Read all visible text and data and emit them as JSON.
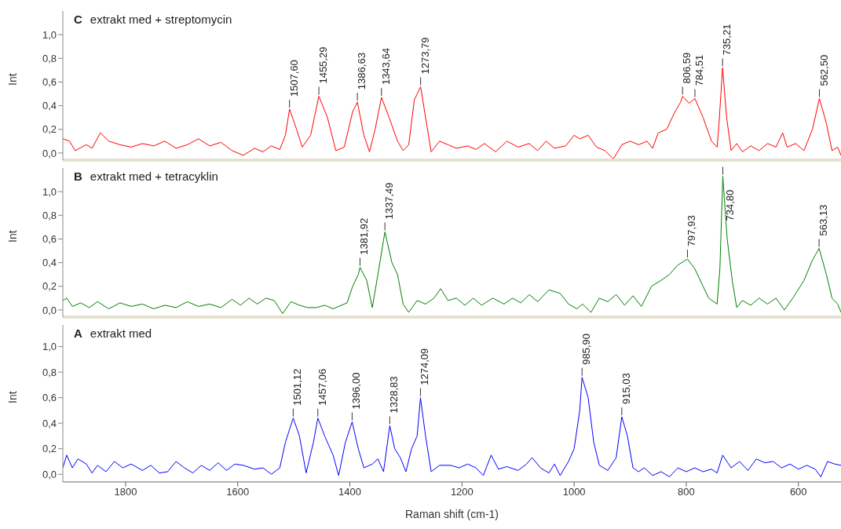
{
  "chart_data": [
    {
      "type": "line",
      "title": "C extrakt med + streptomycin",
      "ylabel": "Int",
      "xlim": [
        1912,
        524
      ],
      "ylim": [
        -0.06,
        1.2
      ],
      "tick_labels": "y",
      "xticks": [
        1800,
        1600,
        1400,
        1200,
        1000,
        800,
        600
      ],
      "yticks": [
        {
          "value": 0,
          "label": "0,0"
        },
        {
          "value": 0.2,
          "label": "0,2"
        },
        {
          "value": 0.4,
          "label": "0,4"
        },
        {
          "value": 0.6,
          "label": "0,6"
        },
        {
          "value": 0.8,
          "label": "0,8"
        },
        {
          "value": 1,
          "label": "1,0"
        }
      ],
      "series": [
        {
          "color": "#ff0000",
          "x": [
            1912,
            1900,
            1890,
            1870,
            1860,
            1845,
            1830,
            1810,
            1790,
            1770,
            1750,
            1730,
            1710,
            1690,
            1670,
            1650,
            1630,
            1610,
            1590,
            1570,
            1555,
            1540,
            1525,
            1515,
            1507.6,
            1495,
            1485,
            1470,
            1455.3,
            1440,
            1425,
            1410,
            1395,
            1386.6,
            1375,
            1365,
            1355,
            1343.6,
            1330,
            1315,
            1305,
            1295,
            1285,
            1273.8,
            1265,
            1255,
            1240,
            1225,
            1210,
            1190,
            1175,
            1160,
            1140,
            1120,
            1100,
            1080,
            1065,
            1050,
            1035,
            1015,
            1000,
            990,
            975,
            960,
            945,
            930,
            915,
            900,
            885,
            870,
            860,
            850,
            835,
            820,
            810,
            806.6,
            795,
            784.5,
            770,
            755,
            745,
            742,
            735.2,
            728,
            720,
            710,
            700,
            685,
            670,
            655,
            640,
            628,
            620,
            605,
            590,
            575,
            562.5,
            550,
            540,
            530,
            524
          ],
          "values": [
            0.12,
            0.1,
            0.02,
            0.07,
            0.04,
            0.17,
            0.1,
            0.07,
            0.05,
            0.08,
            0.06,
            0.1,
            0.04,
            0.07,
            0.12,
            0.06,
            0.09,
            0.02,
            -0.02,
            0.04,
            0.01,
            0.06,
            0.03,
            0.15,
            0.37,
            0.2,
            0.05,
            0.15,
            0.48,
            0.3,
            0.02,
            0.05,
            0.35,
            0.43,
            0.15,
            0.01,
            0.2,
            0.47,
            0.3,
            0.1,
            0.02,
            0.07,
            0.45,
            0.56,
            0.3,
            0.01,
            0.1,
            0.07,
            0.04,
            0.06,
            0.03,
            0.08,
            0.01,
            0.1,
            0.05,
            0.08,
            0.02,
            0.1,
            0.04,
            0.06,
            0.15,
            0.12,
            0.15,
            0.05,
            0.02,
            -0.05,
            0.07,
            0.1,
            0.07,
            0.1,
            0.04,
            0.17,
            0.2,
            0.35,
            0.43,
            0.48,
            0.42,
            0.46,
            0.3,
            0.1,
            0.05,
            0.22,
            0.72,
            0.3,
            0.02,
            0.08,
            0.01,
            0.06,
            0.02,
            0.08,
            0.05,
            0.17,
            0.05,
            0.08,
            0.02,
            0.2,
            0.46,
            0.25,
            0.02,
            0.05,
            -0.02
          ]
        }
      ],
      "annotations": [
        {
          "text": "1507,60",
          "x": 1507.6,
          "y": 0.37
        },
        {
          "text": "1455,29",
          "x": 1455.3,
          "y": 0.48
        },
        {
          "text": "1386,63",
          "x": 1386.6,
          "y": 0.43
        },
        {
          "text": "1343,64",
          "x": 1343.6,
          "y": 0.47
        },
        {
          "text": "1273,79",
          "x": 1273.8,
          "y": 0.56
        },
        {
          "text": "806,59",
          "x": 806.6,
          "y": 0.48
        },
        {
          "text": "784,51",
          "x": 784.5,
          "y": 0.46
        },
        {
          "text": "735,21",
          "x": 735.2,
          "y": 0.72
        },
        {
          "text": "562,50",
          "x": 562.5,
          "y": 0.46
        }
      ]
    },
    {
      "type": "line",
      "title": "B extrakt med + tetracyklin",
      "ylabel": "Int",
      "xlim": [
        1912,
        524
      ],
      "ylim": [
        -0.06,
        1.2
      ],
      "tick_labels": "y",
      "xticks": [
        1800,
        1600,
        1400,
        1200,
        1000,
        800,
        600
      ],
      "yticks": [
        {
          "value": 0,
          "label": "0,0"
        },
        {
          "value": 0.2,
          "label": "0,2"
        },
        {
          "value": 0.4,
          "label": "0,4"
        },
        {
          "value": 0.6,
          "label": "0,6"
        },
        {
          "value": 0.8,
          "label": "0,8"
        },
        {
          "value": 1,
          "label": "1,0"
        }
      ],
      "series": [
        {
          "color": "#008000",
          "x": [
            1912,
            1905,
            1895,
            1880,
            1865,
            1850,
            1830,
            1810,
            1790,
            1770,
            1750,
            1730,
            1710,
            1690,
            1670,
            1650,
            1630,
            1610,
            1595,
            1580,
            1565,
            1550,
            1535,
            1520,
            1505,
            1490,
            1475,
            1460,
            1445,
            1430,
            1405,
            1395,
            1385,
            1381.9,
            1370,
            1360,
            1350,
            1337.5,
            1325,
            1315,
            1305,
            1295,
            1280,
            1265,
            1250,
            1238,
            1225,
            1210,
            1195,
            1180,
            1165,
            1145,
            1125,
            1110,
            1095,
            1080,
            1065,
            1045,
            1025,
            1010,
            995,
            985,
            970,
            955,
            940,
            925,
            910,
            895,
            880,
            862,
            845,
            830,
            815,
            797.9,
            785,
            770,
            760,
            745,
            740,
            734.8,
            727,
            718,
            710,
            700,
            685,
            670,
            655,
            640,
            625,
            610,
            590,
            575,
            563.1,
            550,
            540,
            530,
            524
          ],
          "values": [
            0.08,
            0.1,
            0.03,
            0.06,
            0.02,
            0.07,
            0.01,
            0.06,
            0.03,
            0.05,
            0.01,
            0.04,
            0.02,
            0.07,
            0.03,
            0.05,
            0.02,
            0.09,
            0.04,
            0.1,
            0.05,
            0.1,
            0.08,
            -0.03,
            0.07,
            0.04,
            0.02,
            0.02,
            0.04,
            0.01,
            0.06,
            0.2,
            0.3,
            0.36,
            0.25,
            0.02,
            0.3,
            0.66,
            0.4,
            0.3,
            0.05,
            -0.02,
            0.08,
            0.05,
            0.1,
            0.18,
            0.08,
            0.1,
            0.04,
            0.1,
            0.04,
            0.1,
            0.05,
            0.1,
            0.06,
            0.13,
            0.07,
            0.17,
            0.14,
            0.05,
            0.01,
            0.05,
            -0.02,
            0.1,
            0.07,
            0.13,
            0.04,
            0.12,
            0.03,
            0.2,
            0.25,
            0.3,
            0.38,
            0.43,
            0.35,
            0.2,
            0.1,
            0.05,
            0.35,
            1.13,
            0.6,
            0.25,
            0.02,
            0.08,
            0.04,
            0.1,
            0.05,
            0.1,
            0,
            0.1,
            0.25,
            0.42,
            0.52,
            0.3,
            0.1,
            0.05,
            -0.02
          ]
        }
      ],
      "annotations": [
        {
          "text": "1381,92",
          "x": 1381.9,
          "y": 0.36
        },
        {
          "text": "1337,49",
          "x": 1337.5,
          "y": 0.66
        },
        {
          "text": "797,93",
          "x": 797.9,
          "y": 0.43
        },
        {
          "text": "734,80",
          "x": 734.8,
          "y": 1.13
        },
        {
          "text": "563,13",
          "x": 563.1,
          "y": 0.52
        }
      ]
    },
    {
      "type": "line",
      "title": "A extrakt med",
      "ylabel": "Int",
      "xlabel": "Raman shift (cm-1)",
      "xlim": [
        1912,
        524
      ],
      "ylim": [
        -0.06,
        1.17
      ],
      "xticks": [
        1800,
        1600,
        1400,
        1200,
        1000,
        800,
        600
      ],
      "yticks": [
        {
          "value": 0,
          "label": "0,0"
        },
        {
          "value": 0.2,
          "label": "0,2"
        },
        {
          "value": 0.4,
          "label": "0,4"
        },
        {
          "value": 0.6,
          "label": "0,6"
        },
        {
          "value": 0.8,
          "label": "0,8"
        },
        {
          "value": 1,
          "label": "1,0"
        }
      ],
      "series": [
        {
          "color": "#0000ff",
          "x": [
            1912,
            1905,
            1895,
            1885,
            1870,
            1860,
            1850,
            1835,
            1820,
            1805,
            1790,
            1770,
            1755,
            1740,
            1725,
            1710,
            1695,
            1680,
            1665,
            1650,
            1635,
            1620,
            1605,
            1590,
            1570,
            1555,
            1540,
            1525,
            1515,
            1501.1,
            1490,
            1478,
            1465,
            1457.1,
            1445,
            1430,
            1420,
            1408,
            1396,
            1385,
            1375,
            1360,
            1350,
            1340,
            1328.8,
            1320,
            1310,
            1300,
            1290,
            1280,
            1274.1,
            1265,
            1255,
            1240,
            1220,
            1205,
            1190,
            1175,
            1162,
            1148,
            1135,
            1120,
            1100,
            1085,
            1075,
            1060,
            1045,
            1035,
            1025,
            1010,
            1000,
            990,
            985.9,
            975,
            965,
            955,
            940,
            925,
            915,
            905,
            895,
            885,
            875,
            860,
            845,
            830,
            815,
            800,
            785,
            770,
            755,
            745,
            735,
            720,
            705,
            690,
            675,
            660,
            645,
            630,
            615,
            600,
            585,
            570,
            560,
            548,
            535,
            524
          ],
          "values": [
            0.05,
            0.15,
            0.05,
            0.12,
            0.08,
            0.01,
            0.07,
            0.02,
            0.1,
            0.05,
            0.08,
            0.03,
            0.07,
            0.01,
            0.02,
            0.1,
            0.05,
            0.01,
            0.07,
            0.03,
            0.09,
            0.03,
            0.08,
            0.07,
            0.04,
            0.05,
            0,
            0.05,
            0.25,
            0.44,
            0.3,
            0.01,
            0.25,
            0.44,
            0.3,
            0.15,
            -0.01,
            0.25,
            0.41,
            0.2,
            0.05,
            0.08,
            0.12,
            0.02,
            0.38,
            0.2,
            0.13,
            0.02,
            0.2,
            0.3,
            0.6,
            0.3,
            0.02,
            0.07,
            0.07,
            0.05,
            0.08,
            0.05,
            -0.01,
            0.15,
            0.04,
            0.06,
            0.03,
            0.08,
            0.13,
            0.05,
            0.01,
            0.08,
            -0.01,
            0.1,
            0.2,
            0.5,
            0.76,
            0.6,
            0.25,
            0.07,
            0.03,
            0.13,
            0.45,
            0.3,
            0.05,
            0.02,
            0.05,
            -0.01,
            0.02,
            -0.02,
            0.05,
            0.02,
            0.05,
            0.02,
            0.04,
            0.01,
            0.15,
            0.05,
            0.1,
            0.03,
            0.12,
            0.09,
            0.1,
            0.05,
            0.08,
            0.04,
            0.07,
            0.04,
            -0.02,
            0.1,
            0.08,
            0.07
          ]
        }
      ],
      "annotations": [
        {
          "text": "1501,12",
          "x": 1501.1,
          "y": 0.44
        },
        {
          "text": "1457,06",
          "x": 1457.1,
          "y": 0.44
        },
        {
          "text": "1396,00",
          "x": 1396,
          "y": 0.41
        },
        {
          "text": "1328,83",
          "x": 1328.8,
          "y": 0.38
        },
        {
          "text": "1274,09",
          "x": 1274.1,
          "y": 0.6
        },
        {
          "text": "985,90",
          "x": 985.9,
          "y": 0.76
        },
        {
          "text": "915,03",
          "x": 915,
          "y": 0.45
        }
      ]
    }
  ]
}
